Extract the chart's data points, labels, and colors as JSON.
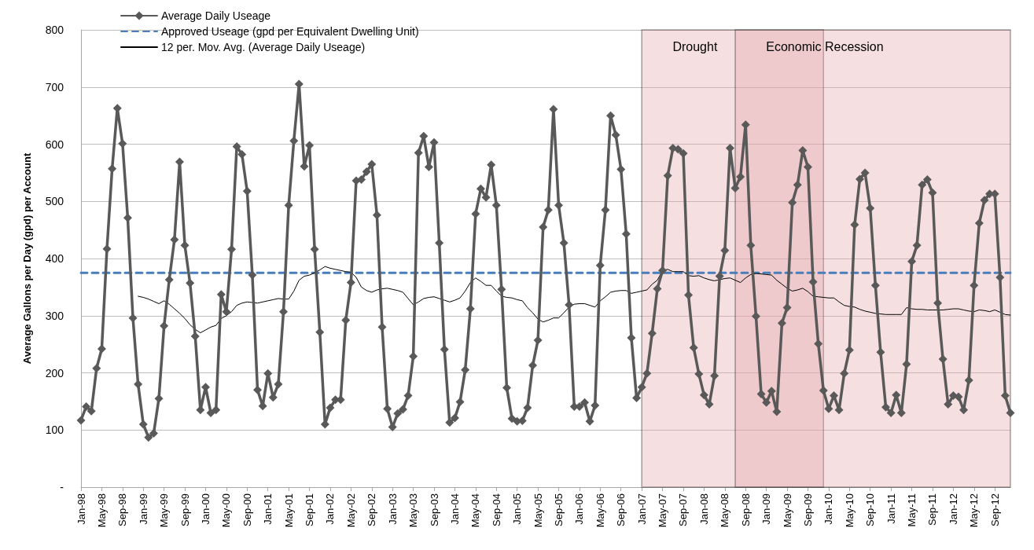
{
  "chart_data": {
    "type": "line",
    "ylabel": "Average Gallons per Day (gpd) per Account",
    "x": [
      "1998-01",
      "1998-02",
      "1998-03",
      "1998-04",
      "1998-05",
      "1998-06",
      "1998-07",
      "1998-08",
      "1998-09",
      "1998-10",
      "1998-11",
      "1998-12",
      "1999-01",
      "1999-02",
      "1999-03",
      "1999-04",
      "1999-05",
      "1999-06",
      "1999-07",
      "1999-08",
      "1999-09",
      "1999-10",
      "1999-11",
      "1999-12",
      "2000-01",
      "2000-02",
      "2000-03",
      "2000-04",
      "2000-05",
      "2000-06",
      "2000-07",
      "2000-08",
      "2000-09",
      "2000-10",
      "2000-11",
      "2000-12",
      "2001-01",
      "2001-02",
      "2001-03",
      "2001-04",
      "2001-05",
      "2001-06",
      "2001-07",
      "2001-08",
      "2001-09",
      "2001-10",
      "2001-11",
      "2001-12",
      "2002-01",
      "2002-02",
      "2002-03",
      "2002-04",
      "2002-05",
      "2002-06",
      "2002-07",
      "2002-08",
      "2002-09",
      "2002-10",
      "2002-11",
      "2002-12",
      "2003-01",
      "2003-02",
      "2003-03",
      "2003-04",
      "2003-05",
      "2003-06",
      "2003-07",
      "2003-08",
      "2003-09",
      "2003-10",
      "2003-11",
      "2003-12",
      "2004-01",
      "2004-02",
      "2004-03",
      "2004-04",
      "2004-05",
      "2004-06",
      "2004-07",
      "2004-08",
      "2004-09",
      "2004-10",
      "2004-11",
      "2004-12",
      "2005-01",
      "2005-02",
      "2005-03",
      "2005-04",
      "2005-05",
      "2005-06",
      "2005-07",
      "2005-08",
      "2005-09",
      "2005-10",
      "2005-11",
      "2005-12",
      "2006-01",
      "2006-02",
      "2006-03",
      "2006-04",
      "2006-05",
      "2006-06",
      "2006-07",
      "2006-08",
      "2006-09",
      "2006-10",
      "2006-11",
      "2006-12",
      "2007-01",
      "2007-02",
      "2007-03",
      "2007-04",
      "2007-05",
      "2007-06",
      "2007-07",
      "2007-08",
      "2007-09",
      "2007-10",
      "2007-11",
      "2007-12",
      "2008-01",
      "2008-02",
      "2008-03",
      "2008-04",
      "2008-05",
      "2008-06",
      "2008-07",
      "2008-08",
      "2008-09",
      "2008-10",
      "2008-11",
      "2008-12",
      "2009-01",
      "2009-02",
      "2009-03",
      "2009-04",
      "2009-05",
      "2009-06",
      "2009-07",
      "2009-08",
      "2009-09",
      "2009-10",
      "2009-11",
      "2009-12",
      "2010-01",
      "2010-02",
      "2010-03",
      "2010-04",
      "2010-05",
      "2010-06",
      "2010-07",
      "2010-08",
      "2010-09",
      "2010-10",
      "2010-11",
      "2010-12",
      "2011-01",
      "2011-02",
      "2011-03",
      "2011-04",
      "2011-05",
      "2011-06",
      "2011-07",
      "2011-08",
      "2011-09",
      "2011-10",
      "2011-11",
      "2011-12",
      "2012-01",
      "2012-02",
      "2012-03",
      "2012-04",
      "2012-05",
      "2012-06",
      "2012-07",
      "2012-08",
      "2012-09",
      "2012-10",
      "2012-11",
      "2012-12"
    ],
    "xlim": [
      "1998-01",
      "2012-12"
    ],
    "xticks": [
      {
        "value": "1998-01",
        "label": "Jan-98"
      },
      {
        "value": "1998-05",
        "label": "May-98"
      },
      {
        "value": "1998-09",
        "label": "Sep-98"
      },
      {
        "value": "1999-01",
        "label": "Jan-99"
      },
      {
        "value": "1999-05",
        "label": "May-99"
      },
      {
        "value": "1999-09",
        "label": "Sep-99"
      },
      {
        "value": "2000-01",
        "label": "Jan-00"
      },
      {
        "value": "2000-05",
        "label": "May-00"
      },
      {
        "value": "2000-09",
        "label": "Sep-00"
      },
      {
        "value": "2001-01",
        "label": "Jan-01"
      },
      {
        "value": "2001-05",
        "label": "May-01"
      },
      {
        "value": "2001-09",
        "label": "Sep-01"
      },
      {
        "value": "2002-01",
        "label": "Jan-02"
      },
      {
        "value": "2002-05",
        "label": "May-02"
      },
      {
        "value": "2002-09",
        "label": "Sep-02"
      },
      {
        "value": "2003-01",
        "label": "Jan-03"
      },
      {
        "value": "2003-05",
        "label": "May-03"
      },
      {
        "value": "2003-09",
        "label": "Sep-03"
      },
      {
        "value": "2004-01",
        "label": "Jan-04"
      },
      {
        "value": "2004-05",
        "label": "May-04"
      },
      {
        "value": "2004-09",
        "label": "Sep-04"
      },
      {
        "value": "2005-01",
        "label": "Jan-05"
      },
      {
        "value": "2005-05",
        "label": "May-05"
      },
      {
        "value": "2005-09",
        "label": "Sep-05"
      },
      {
        "value": "2006-01",
        "label": "Jan-06"
      },
      {
        "value": "2006-05",
        "label": "May-06"
      },
      {
        "value": "2006-09",
        "label": "Sep-06"
      },
      {
        "value": "2007-01",
        "label": "Jan-07"
      },
      {
        "value": "2007-05",
        "label": "May-07"
      },
      {
        "value": "2007-09",
        "label": "Sep-07"
      },
      {
        "value": "2008-01",
        "label": "Jan-08"
      },
      {
        "value": "2008-05",
        "label": "May-08"
      },
      {
        "value": "2008-09",
        "label": "Sep-08"
      },
      {
        "value": "2009-01",
        "label": "Jan-09"
      },
      {
        "value": "2009-05",
        "label": "May-09"
      },
      {
        "value": "2009-09",
        "label": "Sep-09"
      },
      {
        "value": "2010-01",
        "label": "Jan-10"
      },
      {
        "value": "2010-05",
        "label": "May-10"
      },
      {
        "value": "2010-09",
        "label": "Sep-10"
      },
      {
        "value": "2011-01",
        "label": "Jan-11"
      },
      {
        "value": "2011-05",
        "label": "May-11"
      },
      {
        "value": "2011-09",
        "label": "Sep-11"
      },
      {
        "value": "2012-01",
        "label": "Jan-12"
      },
      {
        "value": "2012-05",
        "label": "May-12"
      },
      {
        "value": "2012-09",
        "label": "Sep-12"
      }
    ],
    "ylim": [
      0,
      800
    ],
    "yticks": [
      {
        "value": 0,
        "label": "-"
      },
      100,
      200,
      300,
      400,
      500,
      600,
      700,
      800
    ],
    "grid": "y",
    "legend": "top left",
    "series": [
      {
        "name": "Average Daily Useage",
        "color": "#595959",
        "marker": "diamond",
        "values": [
          117,
          141,
          133,
          208,
          242,
          417,
          557,
          663,
          601,
          471,
          296,
          180,
          110,
          87,
          94,
          155,
          282,
          363,
          433,
          569,
          423,
          357,
          264,
          135,
          175,
          130,
          135,
          337,
          307,
          416,
          596,
          582,
          518,
          371,
          170,
          142,
          199,
          157,
          180,
          307,
          493,
          606,
          705,
          561,
          598,
          416,
          271,
          110,
          139,
          153,
          153,
          292,
          358,
          536,
          538,
          552,
          565,
          476,
          280,
          137,
          105,
          129,
          136,
          160,
          229,
          585,
          614,
          560,
          603,
          427,
          241,
          113,
          121,
          149,
          205,
          312,
          478,
          522,
          507,
          564,
          493,
          346,
          174,
          120,
          115,
          116,
          139,
          213,
          257,
          455,
          485,
          661,
          493,
          427,
          319,
          141,
          141,
          148,
          115,
          143,
          388,
          485,
          650,
          616,
          556,
          443,
          261,
          156,
          175,
          199,
          269,
          347,
          379,
          545,
          593,
          591,
          584,
          336,
          244,
          198,
          161,
          145,
          195,
          369,
          414,
          593,
          523,
          543,
          634,
          423,
          299,
          163,
          148,
          168,
          132,
          287,
          314,
          498,
          529,
          589,
          560,
          359,
          251,
          169,
          137,
          160,
          135,
          199,
          240,
          459,
          539,
          550,
          488,
          353,
          236,
          140,
          130,
          161,
          130,
          215,
          395,
          423,
          529,
          538,
          515,
          322,
          224,
          145,
          160,
          158,
          135,
          187,
          353,
          462,
          502,
          513,
          513,
          367,
          160,
          130
        ]
      },
      {
        "name": "Approved Useage (gpd per Equivalent Dwelling Unit)",
        "color": "#4a7ebb",
        "marker": "none",
        "line_style": "dashed",
        "x": [
          "1998-01",
          "2012-12"
        ],
        "values": [
          375,
          375
        ]
      },
      {
        "name": "12 per. Mov. Avg. (Average Daily Useage)",
        "color": "#000000",
        "marker": "none",
        "values": [
          null,
          null,
          null,
          null,
          null,
          null,
          null,
          null,
          null,
          null,
          null,
          334,
          332,
          329,
          325,
          321,
          326,
          320,
          312,
          304,
          295,
          284,
          276,
          270,
          275,
          280,
          283,
          295,
          300,
          307,
          318,
          322,
          324,
          323,
          322,
          324,
          326,
          328,
          330,
          329,
          329,
          343,
          362,
          369,
          371,
          375,
          380,
          386,
          383,
          381,
          379,
          377,
          376,
          367,
          350,
          344,
          341,
          345,
          347,
          348,
          346,
          344,
          341,
          330,
          319,
          324,
          330,
          332,
          333,
          330,
          327,
          324,
          327,
          331,
          343,
          358,
          366,
          360,
          353,
          353,
          343,
          334,
          332,
          331,
          328,
          326,
          314,
          305,
          294,
          289,
          292,
          296,
          296,
          305,
          315,
          320,
          321,
          321,
          318,
          315,
          326,
          333,
          341,
          343,
          344,
          344,
          339,
          341,
          343,
          345,
          355,
          362,
          379,
          381,
          377,
          377,
          377,
          370,
          369,
          370,
          366,
          363,
          361,
          363,
          365,
          366,
          362,
          358,
          366,
          372,
          374,
          373,
          372,
          371,
          362,
          355,
          348,
          343,
          345,
          348,
          342,
          334,
          333,
          332,
          331,
          331,
          324,
          318,
          316,
          315,
          311,
          308,
          306,
          304,
          303,
          302,
          302,
          302,
          302,
          314,
          312,
          311,
          311,
          310,
          310,
          310,
          310,
          311,
          312,
          312,
          310,
          308,
          307,
          310,
          309,
          307,
          310,
          306,
          302,
          301
        ]
      }
    ],
    "bands": [
      {
        "axis": "x",
        "from": "2007-01",
        "to": "2009-12",
        "label": "Drought",
        "color": "#e3a3a8"
      },
      {
        "axis": "x",
        "from": "2008-07",
        "to": "2012-12",
        "label": "Economic Recession",
        "color": "#e3a3a8"
      }
    ]
  }
}
